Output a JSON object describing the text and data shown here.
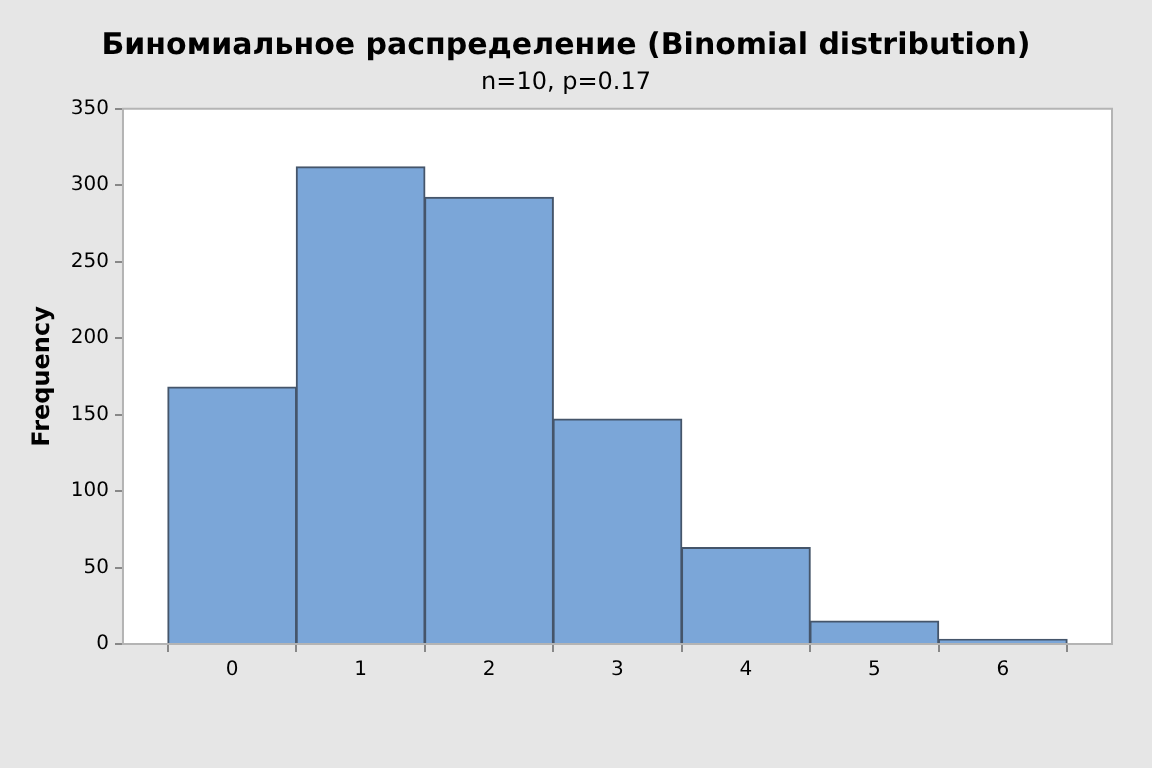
{
  "chart_data": {
    "type": "histogram",
    "title": "Биномиальное распределение (Binomial distribution)",
    "subtitle": "n=10, p=0.17",
    "ylabel": "Frequency",
    "bins": [
      -0.5,
      0.5,
      1.5,
      2.5,
      3.5,
      4.5,
      5.5,
      6.5
    ],
    "values": [
      168,
      312,
      292,
      147,
      63,
      15,
      3
    ],
    "color": "#7ba6d8",
    "xlim": [
      -0.85,
      6.85
    ],
    "xticks": [
      0,
      1,
      2,
      3,
      4,
      5,
      6
    ],
    "ylim": [
      0,
      350
    ],
    "yticks": [
      0,
      50,
      100,
      150,
      200,
      250,
      300,
      350
    ],
    "grid": false
  }
}
